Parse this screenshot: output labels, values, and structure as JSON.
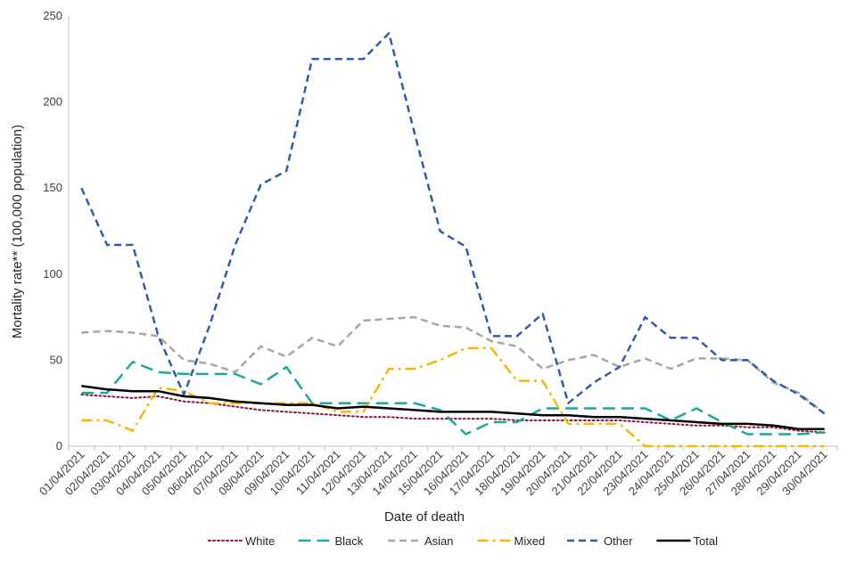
{
  "chart_data": {
    "type": "line",
    "title": "",
    "xlabel": "Date of death",
    "ylabel": "Mortality rate** (100,000 population)",
    "ylim": [
      0,
      250
    ],
    "yticks": [
      0,
      50,
      100,
      150,
      200,
      250
    ],
    "grid": false,
    "legend_position": "bottom",
    "categories": [
      "01/04/2021",
      "02/04/2021",
      "03/04/2021",
      "04/04/2021",
      "05/04/2021",
      "06/04/2021",
      "07/04/2021",
      "08/04/2021",
      "09/04/2021",
      "10/04/2021",
      "11/04/2021",
      "12/04/2021",
      "13/04/2021",
      "14/04/2021",
      "15/04/2021",
      "16/04/2021",
      "17/04/2021",
      "18/04/2021",
      "19/04/2021",
      "20/04/2021",
      "21/04/2021",
      "22/04/2021",
      "23/04/2021",
      "24/04/2021",
      "25/04/2021",
      "26/04/2021",
      "27/04/2021",
      "28/04/2021",
      "29/04/2021",
      "30/04/2021"
    ],
    "series": [
      {
        "name": "White",
        "color": "#8B1A3A",
        "dash": "dot",
        "values": [
          30,
          29,
          28,
          29,
          26,
          25,
          23,
          21,
          20,
          19,
          18,
          17,
          17,
          16,
          16,
          16,
          16,
          15,
          15,
          15,
          15,
          15,
          14,
          13,
          12,
          12,
          11,
          11,
          9,
          8
        ]
      },
      {
        "name": "Black",
        "color": "#1AAA9A",
        "dash": "longdash",
        "values": [
          31,
          31,
          49,
          43,
          42,
          42,
          42,
          36,
          46,
          25,
          25,
          25,
          25,
          25,
          21,
          7,
          14,
          14,
          22,
          22,
          22,
          22,
          22,
          15,
          22,
          14,
          7,
          7,
          7,
          8
        ]
      },
      {
        "name": "Asian",
        "color": "#A6A6A6",
        "dash": "dash",
        "values": [
          66,
          67,
          66,
          64,
          50,
          48,
          43,
          58,
          52,
          63,
          58,
          73,
          74,
          75,
          70,
          69,
          61,
          58,
          45,
          50,
          53,
          46,
          51,
          45,
          51,
          51,
          50,
          37,
          31,
          19
        ]
      },
      {
        "name": "Mixed",
        "color": "#F5B800",
        "dash": "dashdot",
        "values": [
          15,
          15,
          9,
          34,
          32,
          25,
          25,
          25,
          25,
          25,
          20,
          20,
          45,
          45,
          50,
          57,
          57,
          38,
          38,
          13,
          13,
          13,
          0,
          0,
          0,
          0,
          0,
          0,
          0,
          0
        ]
      },
      {
        "name": "Other",
        "color": "#2F5DAA",
        "dash": "dash",
        "values": [
          150,
          117,
          117,
          64,
          30,
          70,
          117,
          152,
          160,
          225,
          225,
          225,
          240,
          182,
          125,
          116,
          64,
          64,
          77,
          25,
          37,
          46,
          75,
          63,
          63,
          50,
          50,
          38,
          30,
          19
        ]
      },
      {
        "name": "Total",
        "color": "#000000",
        "dash": "solid",
        "values": [
          35,
          33,
          32,
          32,
          29,
          28,
          26,
          25,
          24,
          24,
          22,
          23,
          22,
          21,
          20,
          20,
          20,
          19,
          18,
          18,
          17,
          17,
          16,
          15,
          14,
          13,
          13,
          12,
          10,
          10
        ]
      }
    ]
  }
}
